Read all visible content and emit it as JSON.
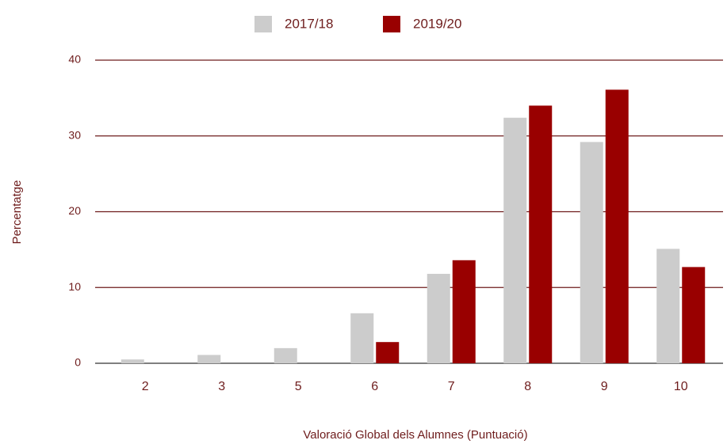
{
  "chart_data": {
    "type": "bar",
    "x_label": "Valoració Global dels Alumnes (Puntuació)",
    "y_label": "Percentatge",
    "categories": [
      "2",
      "3",
      "5",
      "6",
      "7",
      "8",
      "9",
      "10"
    ],
    "series": [
      {
        "name": "2017/18",
        "color": "#cccccc",
        "values": [
          0.5,
          1.1,
          2.0,
          6.6,
          11.8,
          32.4,
          29.2,
          15.1
        ]
      },
      {
        "name": "2019/20",
        "color": "#990000",
        "values": [
          0,
          0,
          0,
          2.8,
          13.6,
          34.0,
          36.1,
          12.7
        ]
      }
    ],
    "ylim": [
      0,
      40
    ],
    "yticks": [
      0,
      10,
      20,
      30,
      40
    ],
    "grid": true,
    "legend": "top"
  }
}
